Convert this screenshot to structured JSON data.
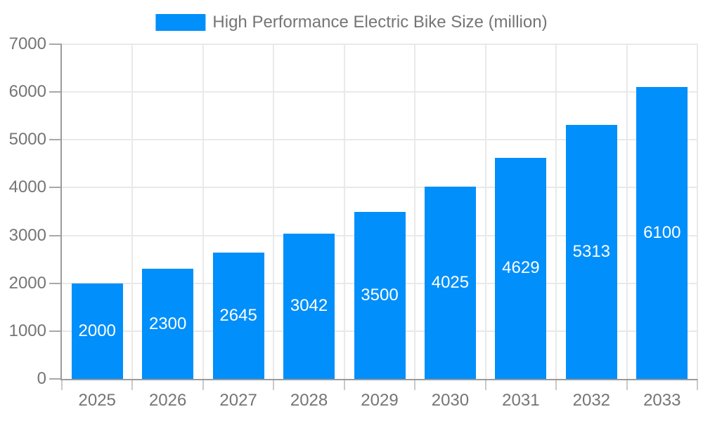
{
  "legend": {
    "label": "High Performance Electric Bike Size (million)"
  },
  "chart_data": {
    "type": "bar",
    "title": "High Performance Electric Bike Size (million)",
    "categories": [
      "2025",
      "2026",
      "2027",
      "2028",
      "2029",
      "2030",
      "2031",
      "2032",
      "2033"
    ],
    "series": [
      {
        "name": "High Performance Electric Bike Size (million)",
        "values": [
          2000,
          2300,
          2645,
          3042,
          3500,
          4025,
          4629,
          5313,
          6100
        ],
        "color": "#008FFB"
      }
    ],
    "xlabel": "",
    "ylabel": "",
    "ylim": [
      0,
      7000
    ],
    "yticks": [
      0,
      1000,
      2000,
      3000,
      4000,
      5000,
      6000,
      7000
    ],
    "grid": true,
    "legend_position": "top-center",
    "value_labels": {
      "position": "inside-center",
      "color": "#FFFFFF"
    }
  },
  "colors": {
    "bar": "#008FFB",
    "axis_line": "#9B9B9B",
    "grid_line": "#E9E9E9",
    "tick_line_y": "#A8A8A8",
    "tick_line_x": "#C9C9C9",
    "axis_label": "#757575",
    "value_label": "#FFFFFF",
    "background": "#FFFFFF"
  }
}
